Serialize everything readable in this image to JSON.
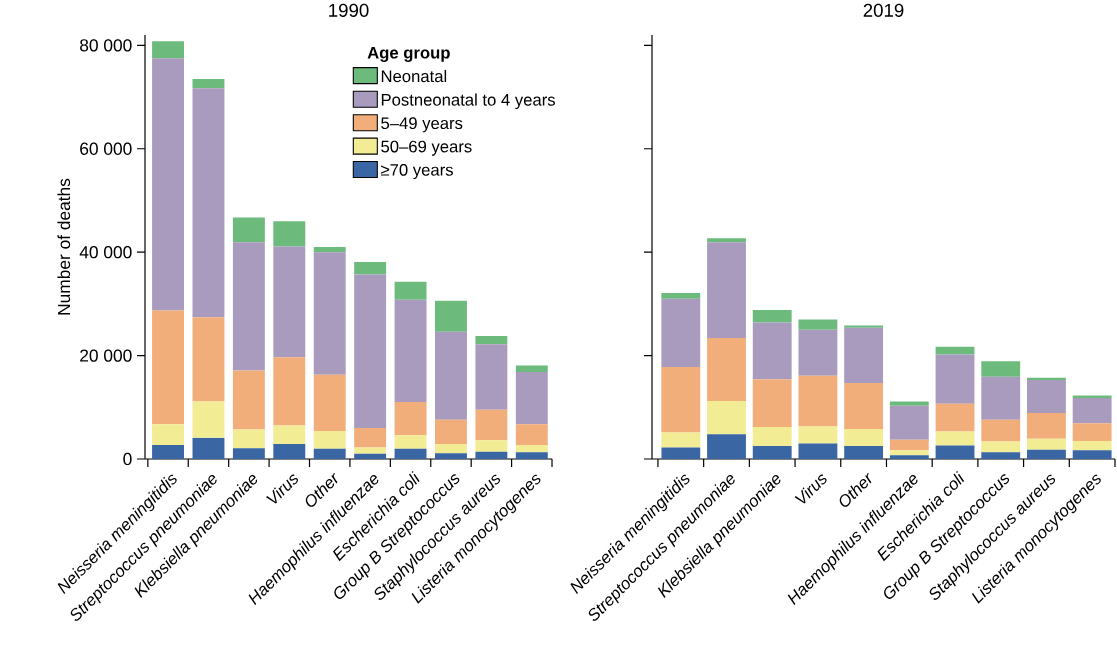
{
  "chart_data": [
    {
      "type": "bar",
      "title": "1990",
      "ylabel": "Number of deaths",
      "stacked": true,
      "legend": "top right",
      "legend_title": "Age group",
      "categories": [
        "Neisseria meningitidis",
        "Streptococcus pneumoniae",
        "Klebsiella pneumoniae",
        "Virus",
        "Other",
        "Haemophilus influenzae",
        "Escherichia coli",
        "Group B Streptococcus",
        "Staphylococcus aureus",
        "Listeria monocytogenes"
      ],
      "ylim": [
        0,
        82000
      ],
      "yticks": [
        0,
        {
          "value": 20000,
          "label": "20 000"
        },
        {
          "value": 40000,
          "label": "40 000"
        },
        {
          "value": 60000,
          "label": "60 000"
        },
        {
          "value": 80000,
          "label": "80 000"
        }
      ],
      "series": [
        {
          "name": "≥70 years",
          "color": "#3a67a3",
          "values": [
            2700,
            4100,
            2100,
            2900,
            2000,
            1000,
            2000,
            1100,
            1400,
            1300
          ]
        },
        {
          "name": "50–69 years",
          "color": "#f2ec94",
          "values": [
            4000,
            7000,
            3600,
            3600,
            3400,
            1200,
            2600,
            1800,
            2200,
            1400
          ]
        },
        {
          "name": "5–49 years",
          "color": "#f2ae7a",
          "values": [
            22000,
            16300,
            11400,
            13200,
            10900,
            3800,
            6400,
            4700,
            5900,
            4000
          ]
        },
        {
          "name": "Postneonatal to 4 years",
          "color": "#a99bbd",
          "values": [
            48800,
            44300,
            24800,
            21400,
            23700,
            29700,
            19800,
            17000,
            12700,
            10100
          ]
        },
        {
          "name": "Neonatal",
          "color": "#6dbb7c",
          "values": [
            3300,
            1800,
            4800,
            4900,
            1000,
            2400,
            3500,
            6000,
            1600,
            1300
          ]
        }
      ]
    },
    {
      "type": "bar",
      "title": "2019",
      "stacked": true,
      "tick_labels": "x",
      "categories": [
        "Neisseria meningitidis",
        "Streptococcus pneumoniae",
        "Klebsiella pneumoniae",
        "Virus",
        "Other",
        "Haemophilus influenzae",
        "Escherichia coli",
        "Group B Streptococcus",
        "Staphylococcus aureus",
        "Listeria monocytogenes"
      ],
      "ylim": [
        0,
        82000
      ],
      "yticks": [
        0,
        20000,
        40000,
        60000,
        80000
      ],
      "series": [
        {
          "color": "#3a67a3",
          "values": [
            2200,
            4800,
            2500,
            3000,
            2500,
            700,
            2600,
            1300,
            1800,
            1700
          ]
        },
        {
          "color": "#f2ec94",
          "values": [
            2900,
            6400,
            3700,
            3300,
            3300,
            1000,
            2700,
            2100,
            2100,
            1800
          ]
        },
        {
          "color": "#f2ae7a",
          "values": [
            12700,
            12200,
            9200,
            9800,
            8900,
            2000,
            5400,
            4200,
            5000,
            3400
          ]
        },
        {
          "color": "#a99bbd",
          "values": [
            13200,
            18500,
            11000,
            8900,
            10700,
            6600,
            9500,
            8300,
            6400,
            4900
          ]
        },
        {
          "color": "#6dbb7c",
          "values": [
            1100,
            800,
            2400,
            2000,
            400,
            800,
            1500,
            3000,
            400,
            500
          ]
        }
      ]
    }
  ]
}
